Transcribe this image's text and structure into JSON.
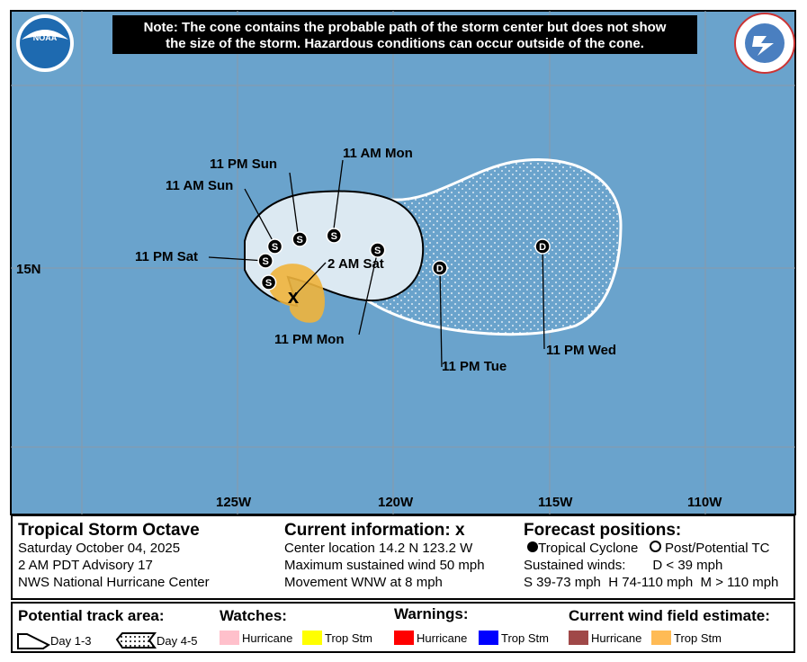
{
  "header": {
    "note_line1": "Note: The cone contains the probable path of the storm center but does not show",
    "note_line2": "the size of the storm. Hazardous conditions can occur outside of the cone.",
    "left_logo": "NOAA",
    "right_logo": "NATIONAL WEATHER SERVICE"
  },
  "map": {
    "lon_labels": [
      "125W",
      "120W",
      "115W",
      "110W"
    ],
    "lat_labels": [
      "15N"
    ],
    "colors": {
      "ocean": "#6aa3cc",
      "cone_day13": "#dce9f2",
      "cone_day45": "#6aa3cc",
      "trop_stm_wind": "#f5b942"
    },
    "current": {
      "label": "2 AM Sat",
      "lat": 14.2,
      "lon": -123.2
    },
    "forecast_points": [
      {
        "type": "S",
        "label": "",
        "lat": 14.6,
        "lon": -124.0
      },
      {
        "type": "S",
        "label": "11 PM Sat",
        "lat": 15.2,
        "lon": -124.1
      },
      {
        "type": "S",
        "label": "11 AM Sun",
        "lat": 15.6,
        "lon": -123.8
      },
      {
        "type": "S",
        "label": "11 PM Sun",
        "lat": 15.8,
        "lon": -123.0
      },
      {
        "type": "S",
        "label": "11 AM Mon",
        "lat": 15.9,
        "lon": -121.9
      },
      {
        "type": "S",
        "label": "11 PM Mon",
        "lat": 15.5,
        "lon": -120.5
      },
      {
        "type": "D",
        "label": "11 PM Tue",
        "lat": 15.0,
        "lon": -118.5
      },
      {
        "type": "D",
        "label": "11 PM Wed",
        "lat": 15.6,
        "lon": -115.2
      }
    ]
  },
  "info": {
    "storm_name": "Tropical Storm Octave",
    "date": "Saturday October 04, 2025",
    "advisory": "2 AM PDT Advisory 17",
    "center": "NWS National Hurricane Center",
    "current_title": "Current information: ",
    "current_marker": "x",
    "location": "Center location 14.2 N 123.2 W",
    "max_wind": "Maximum sustained wind 50 mph",
    "movement": "Movement WNW at 8 mph",
    "forecast_title": "Forecast positions:",
    "tropical_cyclone": "Tropical Cyclone",
    "post_potential": "Post/Potential TC",
    "sustained_winds": "Sustained winds:",
    "d_range": "D < 39 mph",
    "s_range": "S 39-73 mph",
    "h_range": "H 74-110 mph",
    "m_range": "M > 110 mph"
  },
  "legend": {
    "track_title": "Potential track area:",
    "day13": "Day 1-3",
    "day45": "Day 4-5",
    "watches_title": "Watches:",
    "warnings_title": "Warnings:",
    "wind_title": "Current wind field estimate:",
    "hurricane": "Hurricane",
    "trop_stm": "Trop Stm",
    "colors": {
      "watch_hurricane": "#ffc0cb",
      "watch_trop": "#ffff00",
      "warn_hurricane": "#ff0000",
      "warn_trop": "#0000ff",
      "wind_hurricane": "#a04848",
      "wind_trop": "#ffbb55"
    }
  }
}
